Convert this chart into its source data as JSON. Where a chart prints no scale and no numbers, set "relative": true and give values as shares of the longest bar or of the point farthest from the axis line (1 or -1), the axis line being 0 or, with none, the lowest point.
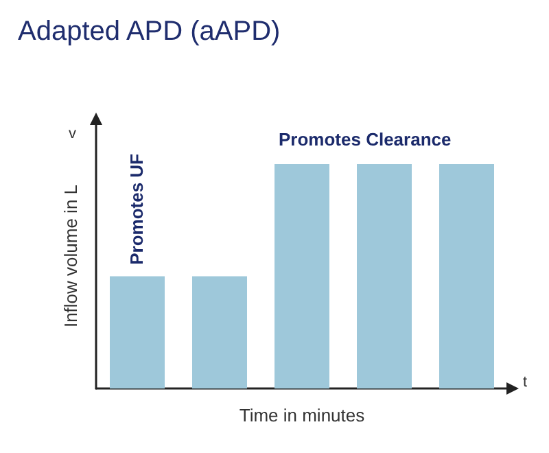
{
  "chart_data": {
    "type": "bar",
    "title": "Adapted APD (aAPD)",
    "xlabel": "Time in minutes",
    "ylabel": "Inflow volume in L",
    "categories": [
      null,
      null,
      null,
      null,
      null
    ],
    "values": [
      0.5,
      0.5,
      1,
      1,
      1
    ],
    "color": "#9ec8da",
    "relative": true,
    "grid": false,
    "annotations": [
      "Promotes UF",
      "Promotes Clearance",
      "v",
      "t"
    ]
  }
}
